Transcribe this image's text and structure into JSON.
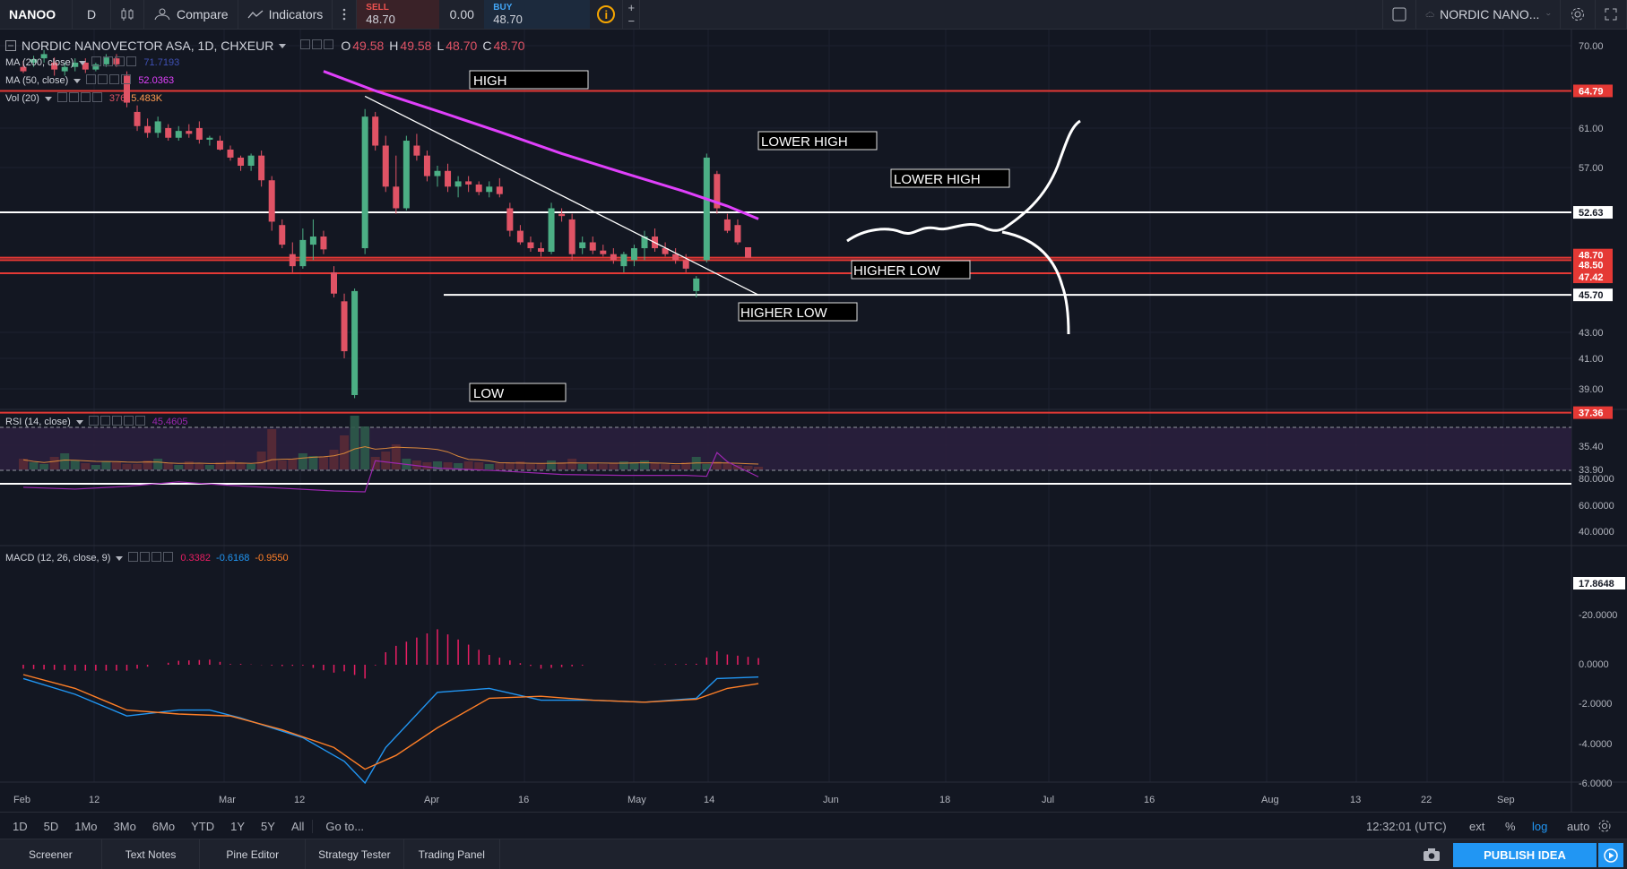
{
  "topbar": {
    "symbol": "NANOO",
    "interval": "D",
    "compare": "Compare",
    "indicators": "Indicators",
    "sell_label": "SELL",
    "sell_value": "48.70",
    "spread": "0.00",
    "buy_label": "BUY",
    "buy_value": "48.70",
    "plus": "+",
    "minus": "−",
    "symbol_search": "NORDIC NANO..."
  },
  "legend": {
    "main": {
      "name": "NORDIC NANOVECTOR ASA, 1D, CHXEUR",
      "o_label": "O",
      "o": "49.58",
      "h_label": "H",
      "h": "49.58",
      "l_label": "L",
      "l": "48.70",
      "c_label": "C",
      "c": "48.70"
    },
    "ma200": {
      "name": "MA (200, close)",
      "value": "71.7193"
    },
    "ma50": {
      "name": "MA (50, close)",
      "value": "52.0363"
    },
    "vol": {
      "name": "Vol (20)",
      "v1": "376",
      "v2": "5.483K"
    },
    "rsi": {
      "name": "RSI (14, close)",
      "value": "45.4605"
    },
    "macd": {
      "name": "MACD (12, 26, close, 9)",
      "v1": "0.3382",
      "v2": "-0.6168",
      "v3": "-0.9550"
    }
  },
  "annotations": {
    "high": "HIGH",
    "low": "LOW",
    "lower_high_1": "LOWER HIGH",
    "lower_high_2": "LOWER HIGH",
    "higher_low_1": "HIGHER LOW",
    "higher_low_2": "HIGHER LOW"
  },
  "price_axis": {
    "ticks": [
      "70.00",
      "61.00",
      "57.00",
      "43.00",
      "41.00",
      "39.00",
      "35.40",
      "33.90"
    ],
    "tags": [
      {
        "label": "64.79",
        "value": 64.79,
        "color": "#e53935"
      },
      {
        "label": "52.63",
        "value": 52.63,
        "color": "#ffffff"
      },
      {
        "label": "48.70",
        "value": 48.7,
        "color": "#e53935"
      },
      {
        "label": "48.50",
        "value": 48.5,
        "color": "#e53935"
      },
      {
        "label": "47.42",
        "value": 47.42,
        "color": "#e53935"
      },
      {
        "label": "45.70",
        "value": 45.7,
        "color": "#ffffff"
      },
      {
        "label": "37.36",
        "value": 37.36,
        "color": "#e53935"
      }
    ]
  },
  "rsi_axis": {
    "ticks": [
      "80.0000",
      "60.0000",
      "40.0000",
      "0.0000",
      "-20.0000"
    ],
    "tag": "17.8648"
  },
  "macd_axis": {
    "ticks": [
      "0.0000",
      "-2.0000",
      "-4.0000",
      "-6.0000"
    ]
  },
  "time_axis": [
    "Feb",
    "12",
    "Mar",
    "12",
    "Apr",
    "16",
    "May",
    "14",
    "Jun",
    "18",
    "Jul",
    "16",
    "Aug",
    "13",
    "22",
    "Sep"
  ],
  "timebar": {
    "ranges": [
      "1D",
      "5D",
      "1Mo",
      "3Mo",
      "6Mo",
      "YTD",
      "1Y",
      "5Y",
      "All"
    ],
    "goto": "Go to...",
    "clock": "12:32:01 (UTC)",
    "ext": "ext",
    "pct": "%",
    "log": "log",
    "auto": "auto"
  },
  "bottombar": {
    "tabs": [
      "Screener",
      "Text Notes",
      "Pine Editor",
      "Strategy Tester",
      "Trading Panel"
    ],
    "publish": "PUBLISH IDEA"
  },
  "colors": {
    "up": "#4caf85",
    "down": "#e05365",
    "ma50": "#e040fb",
    "ma200": "#3f51b5",
    "rsi": "#9c27b0",
    "macd": "#2196f3",
    "signal": "#ff7f27",
    "hline": "#e53935"
  },
  "chart_data": {
    "type": "candlestick",
    "symbol": "NORDIC NANOVECTOR ASA",
    "interval": "1D",
    "price_scale": "log",
    "ohlc": [
      {
        "o": 67.5,
        "h": 68.2,
        "l": 66.8,
        "c": 67.0
      },
      {
        "o": 68.0,
        "h": 68.8,
        "l": 67.5,
        "c": 68.4
      },
      {
        "o": 68.5,
        "h": 69.5,
        "l": 68.0,
        "c": 69.0
      },
      {
        "o": 68.0,
        "h": 68.6,
        "l": 66.5,
        "c": 67.2
      },
      {
        "o": 67.0,
        "h": 68.0,
        "l": 66.5,
        "c": 67.5
      },
      {
        "o": 67.5,
        "h": 68.5,
        "l": 67.0,
        "c": 68.0
      },
      {
        "o": 68.0,
        "h": 68.5,
        "l": 66.8,
        "c": 67.2
      },
      {
        "o": 67.2,
        "h": 68.0,
        "l": 67.0,
        "c": 67.8
      },
      {
        "o": 67.8,
        "h": 69.0,
        "l": 67.5,
        "c": 68.6
      },
      {
        "o": 68.5,
        "h": 69.0,
        "l": 67.5,
        "c": 67.8
      },
      {
        "o": 66.5,
        "h": 67.0,
        "l": 63.0,
        "c": 63.5
      },
      {
        "o": 62.5,
        "h": 63.2,
        "l": 60.5,
        "c": 61.0
      },
      {
        "o": 61.0,
        "h": 61.8,
        "l": 59.8,
        "c": 60.3
      },
      {
        "o": 60.3,
        "h": 62.0,
        "l": 59.8,
        "c": 61.5
      },
      {
        "o": 60.8,
        "h": 61.2,
        "l": 59.5,
        "c": 59.8
      },
      {
        "o": 59.8,
        "h": 61.0,
        "l": 59.5,
        "c": 60.5
      },
      {
        "o": 60.5,
        "h": 61.2,
        "l": 59.8,
        "c": 60.2
      },
      {
        "o": 60.8,
        "h": 61.5,
        "l": 59.2,
        "c": 59.6
      },
      {
        "o": 59.6,
        "h": 60.0,
        "l": 59.0,
        "c": 59.8
      },
      {
        "o": 59.5,
        "h": 60.0,
        "l": 58.5,
        "c": 58.6
      },
      {
        "o": 58.6,
        "h": 59.0,
        "l": 57.5,
        "c": 57.8
      },
      {
        "o": 57.8,
        "h": 58.0,
        "l": 56.5,
        "c": 57.0
      },
      {
        "o": 57.0,
        "h": 58.2,
        "l": 56.5,
        "c": 58.0
      },
      {
        "o": 58.0,
        "h": 58.5,
        "l": 55.0,
        "c": 55.6
      },
      {
        "o": 55.6,
        "h": 56.0,
        "l": 51.0,
        "c": 51.8
      },
      {
        "o": 51.5,
        "h": 52.0,
        "l": 49.5,
        "c": 49.8
      },
      {
        "o": 49.0,
        "h": 50.0,
        "l": 47.5,
        "c": 48.0
      },
      {
        "o": 48.0,
        "h": 51.2,
        "l": 47.8,
        "c": 50.2
      },
      {
        "o": 49.8,
        "h": 52.0,
        "l": 48.5,
        "c": 50.5
      },
      {
        "o": 50.5,
        "h": 51.0,
        "l": 49.0,
        "c": 49.4
      },
      {
        "o": 47.5,
        "h": 48.0,
        "l": 45.5,
        "c": 45.8
      },
      {
        "o": 45.2,
        "h": 45.8,
        "l": 41.0,
        "c": 41.5
      },
      {
        "o": 38.5,
        "h": 46.2,
        "l": 38.3,
        "c": 46.0
      },
      {
        "o": 49.5,
        "h": 62.8,
        "l": 49.0,
        "c": 62.0
      },
      {
        "o": 62.0,
        "h": 62.5,
        "l": 58.5,
        "c": 59.0
      },
      {
        "o": 59.0,
        "h": 60.0,
        "l": 54.5,
        "c": 55.0
      },
      {
        "o": 55.0,
        "h": 58.0,
        "l": 52.5,
        "c": 53.0
      },
      {
        "o": 53.0,
        "h": 60.0,
        "l": 52.8,
        "c": 59.5
      },
      {
        "o": 59.0,
        "h": 60.2,
        "l": 57.5,
        "c": 58.0
      },
      {
        "o": 58.0,
        "h": 58.5,
        "l": 55.5,
        "c": 56.0
      },
      {
        "o": 56.0,
        "h": 57.0,
        "l": 55.0,
        "c": 56.5
      },
      {
        "o": 56.5,
        "h": 57.2,
        "l": 54.5,
        "c": 55.0
      },
      {
        "o": 55.0,
        "h": 56.0,
        "l": 54.0,
        "c": 55.5
      },
      {
        "o": 55.5,
        "h": 56.0,
        "l": 54.5,
        "c": 55.2
      },
      {
        "o": 55.2,
        "h": 55.5,
        "l": 54.2,
        "c": 54.5
      },
      {
        "o": 54.5,
        "h": 55.5,
        "l": 54.0,
        "c": 55.0
      },
      {
        "o": 55.0,
        "h": 55.8,
        "l": 54.0,
        "c": 54.3
      },
      {
        "o": 53.0,
        "h": 53.5,
        "l": 50.5,
        "c": 51.0
      },
      {
        "o": 51.0,
        "h": 51.5,
        "l": 49.8,
        "c": 50.0
      },
      {
        "o": 50.0,
        "h": 50.5,
        "l": 49.2,
        "c": 49.5
      },
      {
        "o": 49.5,
        "h": 50.0,
        "l": 48.8,
        "c": 49.2
      },
      {
        "o": 49.2,
        "h": 53.5,
        "l": 49.0,
        "c": 53.0
      },
      {
        "o": 52.5,
        "h": 53.0,
        "l": 51.8,
        "c": 52.3
      },
      {
        "o": 52.0,
        "h": 52.5,
        "l": 48.5,
        "c": 49.0
      },
      {
        "o": 49.5,
        "h": 50.5,
        "l": 49.0,
        "c": 50.0
      },
      {
        "o": 50.0,
        "h": 50.5,
        "l": 49.0,
        "c": 49.3
      },
      {
        "o": 49.3,
        "h": 49.8,
        "l": 48.8,
        "c": 49.0
      },
      {
        "o": 49.0,
        "h": 49.5,
        "l": 48.2,
        "c": 48.5
      },
      {
        "o": 48.0,
        "h": 49.2,
        "l": 47.5,
        "c": 49.0
      },
      {
        "o": 48.5,
        "h": 49.8,
        "l": 48.0,
        "c": 49.5
      },
      {
        "o": 49.5,
        "h": 51.0,
        "l": 48.5,
        "c": 50.5
      },
      {
        "o": 50.5,
        "h": 51.2,
        "l": 49.2,
        "c": 49.5
      },
      {
        "o": 49.5,
        "h": 50.0,
        "l": 48.8,
        "c": 49.0
      },
      {
        "o": 49.0,
        "h": 49.5,
        "l": 48.2,
        "c": 48.5
      },
      {
        "o": 48.5,
        "h": 49.0,
        "l": 47.5,
        "c": 47.8
      },
      {
        "o": 46.0,
        "h": 47.2,
        "l": 45.5,
        "c": 47.0
      },
      {
        "o": 48.5,
        "h": 58.2,
        "l": 48.3,
        "c": 57.8
      },
      {
        "o": 56.2,
        "h": 56.5,
        "l": 52.5,
        "c": 53.0
      },
      {
        "o": 52.0,
        "h": 52.5,
        "l": 50.8,
        "c": 51.0
      },
      {
        "o": 51.5,
        "h": 52.0,
        "l": 49.8,
        "c": 50.0
      },
      {
        "o": 49.58,
        "h": 49.58,
        "l": 48.7,
        "c": 48.7
      }
    ],
    "ma50": [
      [
        29,
        67.0
      ],
      [
        34,
        64.8
      ],
      [
        40,
        62.6
      ],
      [
        46,
        60.4
      ],
      [
        52,
        58.2
      ],
      [
        58,
        56.3
      ],
      [
        64,
        54.5
      ],
      [
        68,
        53.2
      ],
      [
        71,
        52.04
      ]
    ],
    "trendline": [
      [
        33,
        64.2
      ],
      [
        71,
        45.7
      ]
    ],
    "hlines": [
      64.79,
      52.63,
      48.7,
      48.5,
      47.42,
      45.7,
      37.36
    ],
    "rsi": [
      [
        0,
        34
      ],
      [
        5,
        32
      ],
      [
        10,
        35
      ],
      [
        15,
        40
      ],
      [
        20,
        36
      ],
      [
        25,
        33
      ],
      [
        30,
        30
      ],
      [
        33,
        29
      ],
      [
        34,
        63
      ],
      [
        40,
        55
      ],
      [
        46,
        52
      ],
      [
        52,
        48
      ],
      [
        58,
        47
      ],
      [
        64,
        47
      ],
      [
        66,
        46
      ],
      [
        67,
        72
      ],
      [
        68,
        62
      ],
      [
        71,
        45.46
      ]
    ],
    "rsi_bands": [
      70,
      30
    ],
    "macd": [
      [
        0,
        -0.7
      ],
      [
        5,
        -1.5
      ],
      [
        10,
        -2.6
      ],
      [
        15,
        -2.3
      ],
      [
        18,
        -2.3
      ],
      [
        21,
        -2.7
      ],
      [
        27,
        -3.7
      ],
      [
        31,
        -4.9
      ],
      [
        33,
        -6.0
      ],
      [
        35,
        -4.2
      ],
      [
        40,
        -1.4
      ],
      [
        45,
        -1.2
      ],
      [
        50,
        -1.8
      ],
      [
        55,
        -1.8
      ],
      [
        60,
        -1.9
      ],
      [
        65,
        -1.7
      ],
      [
        67,
        -0.7
      ],
      [
        71,
        -0.62
      ]
    ],
    "signal": [
      [
        0,
        -0.5
      ],
      [
        5,
        -1.2
      ],
      [
        10,
        -2.3
      ],
      [
        15,
        -2.5
      ],
      [
        20,
        -2.6
      ],
      [
        25,
        -3.3
      ],
      [
        30,
        -4.2
      ],
      [
        33,
        -5.3
      ],
      [
        36,
        -4.6
      ],
      [
        40,
        -3.2
      ],
      [
        45,
        -1.7
      ],
      [
        50,
        -1.6
      ],
      [
        55,
        -1.8
      ],
      [
        60,
        -1.9
      ],
      [
        65,
        -1.75
      ],
      [
        68,
        -1.2
      ],
      [
        71,
        -0.96
      ]
    ]
  }
}
